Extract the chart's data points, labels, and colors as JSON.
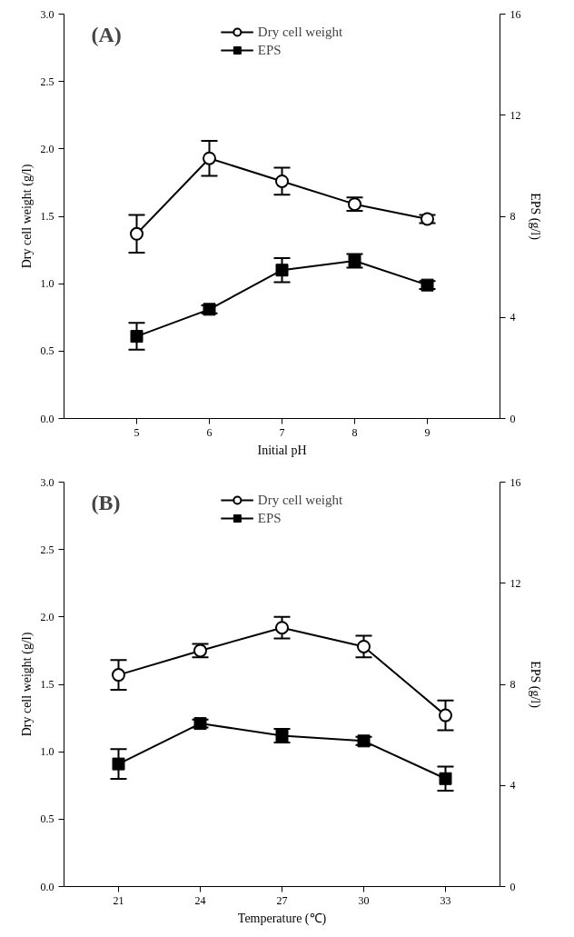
{
  "chart_data": [
    {
      "type": "line",
      "title": "(A)",
      "xlabel": "Initial pH",
      "ylabel": "Dry cell weight (g/l)",
      "y2label": "EPS (g/l)",
      "x": [
        5,
        6,
        7,
        8,
        9
      ],
      "xlim": [
        4,
        10
      ],
      "xticks": [
        5,
        6,
        7,
        8,
        9
      ],
      "ylim": [
        0,
        3
      ],
      "yticks": [
        {
          "value": 0,
          "label": "0.0"
        },
        {
          "value": 0.5,
          "label": "0.5"
        },
        {
          "value": 1,
          "label": "1.0"
        },
        {
          "value": 1.5,
          "label": "1.5"
        },
        {
          "value": 2,
          "label": "2.0"
        },
        {
          "value": 2.5,
          "label": "2.5"
        },
        {
          "value": 3,
          "label": "3.0"
        }
      ],
      "y2lim": [
        0,
        16
      ],
      "y2ticks": [
        0,
        4,
        8,
        12,
        16
      ],
      "legend": "top",
      "grid": false,
      "series": [
        {
          "name": "Dry cell weight",
          "color": "#000000",
          "marker": "circle",
          "values": [
            1.37,
            1.93,
            1.76,
            1.59,
            1.48
          ],
          "errors": [
            0.14,
            0.13,
            0.1,
            0.05,
            0.03
          ]
        },
        {
          "name": "EPS",
          "color": "#000000",
          "marker": "square",
          "axis": "y2",
          "values": [
            3.25,
            4.32,
            5.87,
            6.24,
            5.28
          ],
          "errors": [
            0.53,
            0.16,
            0.48,
            0.27,
            0.16
          ]
        }
      ]
    },
    {
      "type": "line",
      "title": "(B)",
      "xlabel": "Temperature (℃)",
      "ylabel": "Dry cell weight (g/l)",
      "y2label": "EPS (g/l)",
      "x": [
        21,
        24,
        27,
        30,
        33
      ],
      "xlim": [
        19,
        35
      ],
      "xticks": [
        21,
        24,
        27,
        30,
        33
      ],
      "ylim": [
        0,
        3
      ],
      "yticks": [
        {
          "value": 0,
          "label": "0.0"
        },
        {
          "value": 0.5,
          "label": "0.5"
        },
        {
          "value": 1,
          "label": "1.0"
        },
        {
          "value": 1.5,
          "label": "1.5"
        },
        {
          "value": 2,
          "label": "2.0"
        },
        {
          "value": 2.5,
          "label": "2.5"
        },
        {
          "value": 3,
          "label": "3.0"
        }
      ],
      "y2lim": [
        0,
        16
      ],
      "y2ticks": [
        0,
        4,
        8,
        12,
        16
      ],
      "legend": "top",
      "grid": false,
      "series": [
        {
          "name": "Dry cell weight",
          "color": "#000000",
          "marker": "circle",
          "values": [
            1.57,
            1.75,
            1.92,
            1.78,
            1.27
          ],
          "errors": [
            0.11,
            0.05,
            0.08,
            0.08,
            0.11
          ]
        },
        {
          "name": "EPS",
          "color": "#000000",
          "marker": "square",
          "axis": "y2",
          "values": [
            4.85,
            6.45,
            5.97,
            5.76,
            4.27
          ],
          "errors": [
            0.59,
            0.16,
            0.27,
            0.16,
            0.48
          ]
        }
      ]
    }
  ]
}
